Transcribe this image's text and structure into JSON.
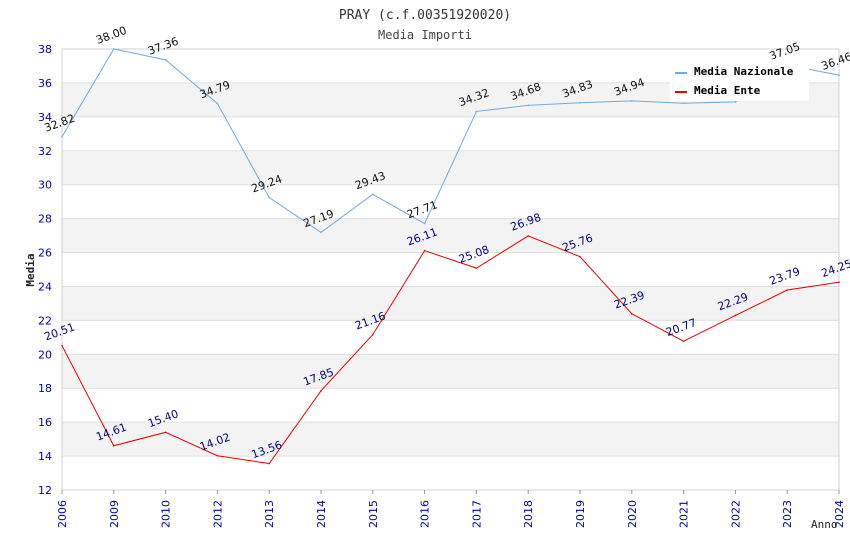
{
  "chart_data": {
    "type": "line",
    "title": "PRAY (c.f.00351920020)",
    "subtitle": "Media Importi",
    "xlabel": "Anno",
    "ylabel": "Media",
    "ylim": [
      12,
      38
    ],
    "yticks": [
      12,
      14,
      16,
      18,
      20,
      22,
      24,
      26,
      28,
      30,
      32,
      34,
      36,
      38
    ],
    "grid": "horizontal alternating bands",
    "legend_position": "top-right",
    "categories": [
      "2006",
      "2009",
      "2010",
      "2012",
      "2013",
      "2014",
      "2015",
      "2016",
      "2017",
      "2018",
      "2019",
      "2020",
      "2021",
      "2022",
      "2023",
      "2024"
    ],
    "series": [
      {
        "name": "Media Nazionale",
        "color": "#6fa8dc",
        "values": [
          32.82,
          38.0,
          37.36,
          34.79,
          29.24,
          27.19,
          29.43,
          27.71,
          34.32,
          34.68,
          34.83,
          34.94,
          34.8,
          34.88,
          37.05,
          36.46
        ],
        "labels": [
          "32.82",
          "38.00",
          "37.36",
          "34.79",
          "29.24",
          "27.19",
          "29.43",
          "27.71",
          "34.32",
          "34.68",
          "34.83",
          "34.94",
          "",
          "",
          "37.05",
          "36.46"
        ]
      },
      {
        "name": "Media Ente",
        "color": "#ee0000",
        "values": [
          20.51,
          14.61,
          15.4,
          14.02,
          13.56,
          17.85,
          21.16,
          26.11,
          25.08,
          26.98,
          25.76,
          22.39,
          20.77,
          22.29,
          23.79,
          24.25
        ],
        "labels": [
          "20.51",
          "14.61",
          "15.40",
          "14.02",
          "13.56",
          "17.85",
          "21.16",
          "26.11",
          "25.08",
          "26.98",
          "25.76",
          "22.39",
          "20.77",
          "22.29",
          "23.79",
          "24.25"
        ]
      }
    ]
  }
}
